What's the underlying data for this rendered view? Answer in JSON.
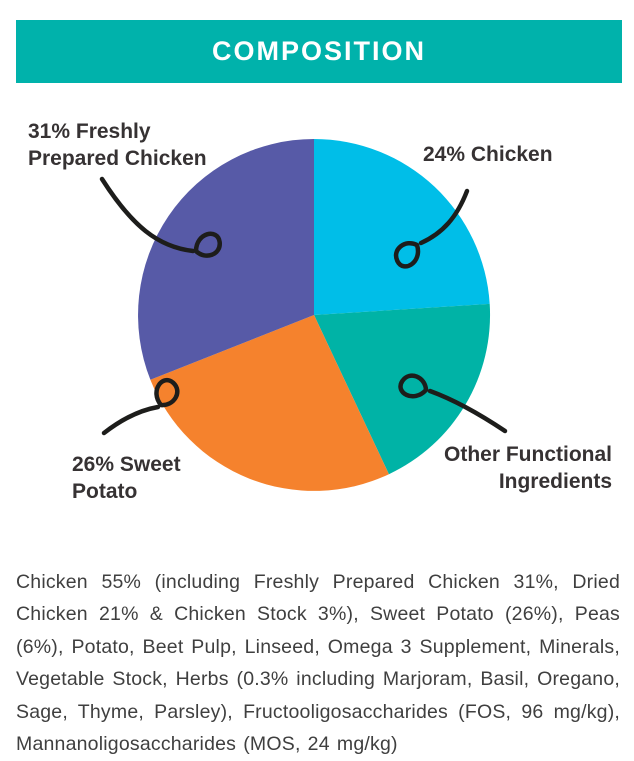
{
  "header": {
    "title": "COMPOSITION",
    "bg_color": "#00B2AB",
    "text_color": "#FFFFFF"
  },
  "chart_data": {
    "type": "pie",
    "title": "COMPOSITION",
    "direction": "clockwise",
    "start_angle_deg": 0,
    "legend_position": "callout-labels",
    "slices": [
      {
        "name": "Chicken",
        "label": "24% Chicken",
        "value": 24,
        "color": "#00BEE8"
      },
      {
        "name": "Other Functional Ingredients",
        "label": "Other Functional Ingredients",
        "value": 19,
        "color": "#00B3A6"
      },
      {
        "name": "Sweet Potato",
        "label": "26% Sweet Potato",
        "value": 26,
        "color": "#F5822D"
      },
      {
        "name": "Freshly Prepared Chicken",
        "label": "31% Freshly Prepared Chicken",
        "value": 31,
        "color": "#575AA7"
      }
    ]
  },
  "callouts": {
    "freshly": {
      "line1": "31% Freshly",
      "line2": "Prepared Chicken"
    },
    "chicken": {
      "text": "24% Chicken"
    },
    "sweet": {
      "line1": "26% Sweet",
      "line2": "Potato"
    },
    "other": {
      "line1": "Other Functional",
      "line2": "Ingredients"
    }
  },
  "composition_text": "Chicken 55% (including Freshly Prepared Chicken 31%, Dried Chicken 21% & Chicken Stock 3%), Sweet Potato (26%), Peas (6%), Potato, Beet Pulp, Linseed, Omega 3 Supplement, Minerals, Vegetable Stock, Herbs (0.3% including Marjoram, Basil, Oregano, Sage, Thyme, Parsley), Fructooligosaccharides (FOS, 96 mg/kg), Mannanoligosaccharides (MOS, 24 mg/kg)"
}
